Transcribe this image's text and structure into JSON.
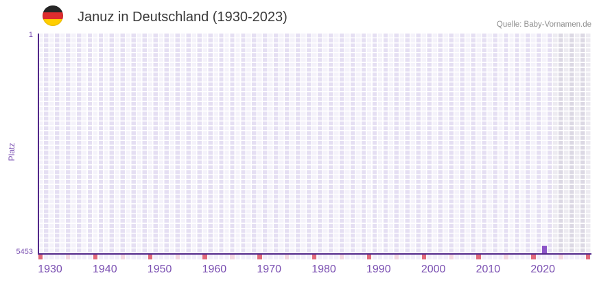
{
  "header": {
    "flag_icon": "german-flag-circle",
    "title": "Januz in Deutschland (1930-2023)",
    "source": "Quelle: Baby-Vornamen.de"
  },
  "chart_data": {
    "type": "bar",
    "title": "Januz in Deutschland (1930-2023)",
    "name": "Januz",
    "region": "Deutschland",
    "year_range_label": "1930-2023",
    "xlabel": "",
    "ylabel": "Platz",
    "grid": true,
    "legend": false,
    "y_axis": {
      "top_label": "1",
      "bottom_label": "5453",
      "min": 1,
      "max": 5453,
      "inverted": true
    },
    "x_axis": {
      "grid_start_year": 1930,
      "grid_end_year": 2030,
      "data_end_year": 2023,
      "tick_years": [
        1930,
        1940,
        1950,
        1960,
        1970,
        1980,
        1990,
        2000,
        2010,
        2020
      ],
      "decade_marker_years": [
        1930,
        1940,
        1950,
        1960,
        1970,
        1980,
        1990,
        2000,
        2010,
        2020,
        2030
      ],
      "mid_decade_marker_years": [
        1935,
        1945,
        1955,
        1965,
        1975,
        1985,
        1995,
        2005,
        2015,
        2025
      ]
    },
    "series": [
      {
        "name": "Januz",
        "points": [
          {
            "year": 2022,
            "value": 5453
          }
        ]
      }
    ],
    "shaded_future_from_year": 2024
  },
  "colors": {
    "bar": "#8c55c8",
    "axis_line": "#52288a",
    "axis_label": "#7b50b2",
    "grid_cell_light": "#ebe7f6",
    "grid_cell_dark": "#e3e0ea",
    "marker_row_cell": "#f1eef9",
    "decade_marker": "#e0697a",
    "mid_decade_marker": "#f3d6e0",
    "title_text": "#3a3a3a",
    "source_text": "#8f8f8f",
    "flag_black": "#262626",
    "flag_red": "#dd2c2e",
    "flag_gold": "#ffce00"
  }
}
